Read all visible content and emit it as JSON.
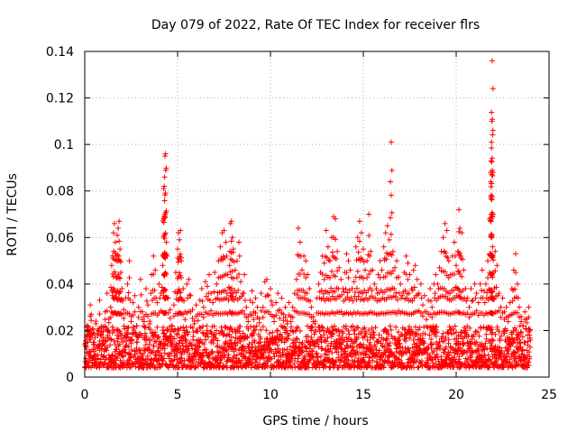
{
  "chart_data": {
    "type": "scatter",
    "title": "Day 079 of 2022, Rate Of TEC Index for receiver flrs",
    "xlabel": "GPS time / hours",
    "ylabel": "ROTI / TECUs",
    "xlim": [
      0,
      25
    ],
    "ylim": [
      0,
      0.14
    ],
    "xticks": [
      0,
      5,
      10,
      15,
      20,
      25
    ],
    "yticks": [
      0,
      0.02,
      0.04,
      0.06,
      0.08,
      0.1,
      0.12,
      0.14
    ],
    "xtick_labels": [
      "0",
      "5",
      "10",
      "15",
      "20",
      "25"
    ],
    "ytick_labels": [
      "0",
      "0.02",
      "0.04",
      "0.06",
      "0.08",
      "0.1",
      "0.12",
      "0.14"
    ],
    "grid": true,
    "marker": "+",
    "color": "#ff0000",
    "series": [
      {
        "name": "ROTI",
        "points": [
          [
            0.05,
            0.008
          ],
          [
            0.1,
            0.012
          ],
          [
            0.15,
            0.022
          ],
          [
            0.2,
            0.018
          ],
          [
            0.3,
            0.031
          ],
          [
            0.35,
            0.027
          ],
          [
            0.45,
            0.019
          ],
          [
            0.5,
            0.015
          ],
          [
            0.6,
            0.024
          ],
          [
            0.7,
            0.013
          ],
          [
            0.8,
            0.033
          ],
          [
            0.9,
            0.021
          ],
          [
            1.0,
            0.017
          ],
          [
            1.1,
            0.028
          ],
          [
            1.2,
            0.036
          ],
          [
            1.3,
            0.025
          ],
          [
            1.4,
            0.03
          ],
          [
            1.45,
            0.048
          ],
          [
            1.5,
            0.052
          ],
          [
            1.55,
            0.062
          ],
          [
            1.6,
            0.066
          ],
          [
            1.65,
            0.058
          ],
          [
            1.7,
            0.05
          ],
          [
            1.75,
            0.061
          ],
          [
            1.8,
            0.064
          ],
          [
            1.85,
            0.067
          ],
          [
            1.9,
            0.055
          ],
          [
            1.95,
            0.045
          ],
          [
            2.0,
            0.038
          ],
          [
            2.1,
            0.029
          ],
          [
            2.2,
            0.034
          ],
          [
            2.3,
            0.04
          ],
          [
            2.4,
            0.05
          ],
          [
            2.5,
            0.026
          ],
          [
            2.6,
            0.032
          ],
          [
            2.7,
            0.035
          ],
          [
            2.8,
            0.022
          ],
          [
            2.9,
            0.03
          ],
          [
            3.0,
            0.042
          ],
          [
            3.1,
            0.028
          ],
          [
            3.2,
            0.026
          ],
          [
            3.3,
            0.038
          ],
          [
            3.4,
            0.031
          ],
          [
            3.5,
            0.024
          ],
          [
            3.6,
            0.044
          ],
          [
            3.7,
            0.052
          ],
          [
            3.8,
            0.046
          ],
          [
            3.9,
            0.032
          ],
          [
            4.0,
            0.04
          ],
          [
            4.1,
            0.036
          ],
          [
            4.2,
            0.048
          ],
          [
            4.25,
            0.081
          ],
          [
            4.28,
            0.082
          ],
          [
            4.3,
            0.086
          ],
          [
            4.32,
            0.095
          ],
          [
            4.35,
            0.096
          ],
          [
            4.4,
            0.058
          ],
          [
            4.5,
            0.034
          ],
          [
            4.6,
            0.029
          ],
          [
            4.7,
            0.022
          ],
          [
            4.8,
            0.031
          ],
          [
            4.9,
            0.045
          ],
          [
            5.0,
            0.055
          ],
          [
            5.05,
            0.062
          ],
          [
            5.1,
            0.059
          ],
          [
            5.15,
            0.063
          ],
          [
            5.2,
            0.05
          ],
          [
            5.3,
            0.038
          ],
          [
            5.4,
            0.028
          ],
          [
            5.5,
            0.04
          ],
          [
            5.6,
            0.042
          ],
          [
            5.7,
            0.035
          ],
          [
            5.8,
            0.029
          ],
          [
            5.9,
            0.024
          ],
          [
            6.0,
            0.031
          ],
          [
            6.1,
            0.027
          ],
          [
            6.2,
            0.033
          ],
          [
            6.3,
            0.038
          ],
          [
            6.4,
            0.03
          ],
          [
            6.5,
            0.041
          ],
          [
            6.6,
            0.039
          ],
          [
            6.7,
            0.044
          ],
          [
            6.8,
            0.036
          ],
          [
            6.9,
            0.032
          ],
          [
            7.0,
            0.045
          ],
          [
            7.1,
            0.04
          ],
          [
            7.2,
            0.05
          ],
          [
            7.3,
            0.056
          ],
          [
            7.4,
            0.062
          ],
          [
            7.5,
            0.063
          ],
          [
            7.6,
            0.058
          ],
          [
            7.7,
            0.044
          ],
          [
            7.8,
            0.048
          ],
          [
            7.85,
            0.066
          ],
          [
            7.9,
            0.067
          ],
          [
            7.95,
            0.06
          ],
          [
            8.0,
            0.055
          ],
          [
            8.1,
            0.046
          ],
          [
            8.2,
            0.05
          ],
          [
            8.3,
            0.058
          ],
          [
            8.4,
            0.041
          ],
          [
            8.5,
            0.036
          ],
          [
            8.6,
            0.044
          ],
          [
            8.7,
            0.03
          ],
          [
            8.8,
            0.026
          ],
          [
            8.9,
            0.033
          ],
          [
            9.0,
            0.037
          ],
          [
            9.1,
            0.028
          ],
          [
            9.2,
            0.034
          ],
          [
            9.3,
            0.03
          ],
          [
            9.4,
            0.025
          ],
          [
            9.5,
            0.036
          ],
          [
            9.6,
            0.03
          ],
          [
            9.7,
            0.041
          ],
          [
            9.8,
            0.042
          ],
          [
            9.9,
            0.035
          ],
          [
            10.0,
            0.038
          ],
          [
            10.1,
            0.031
          ],
          [
            10.2,
            0.026
          ],
          [
            10.3,
            0.032
          ],
          [
            10.4,
            0.036
          ],
          [
            10.5,
            0.029
          ],
          [
            10.6,
            0.034
          ],
          [
            10.7,
            0.027
          ],
          [
            10.8,
            0.03
          ],
          [
            10.9,
            0.024
          ],
          [
            11.0,
            0.032
          ],
          [
            11.1,
            0.026
          ],
          [
            11.2,
            0.03
          ],
          [
            11.3,
            0.036
          ],
          [
            11.4,
            0.042
          ],
          [
            11.5,
            0.064
          ],
          [
            11.6,
            0.058
          ],
          [
            11.7,
            0.046
          ],
          [
            11.8,
            0.052
          ],
          [
            11.9,
            0.05
          ],
          [
            12.0,
            0.044
          ],
          [
            12.1,
            0.038
          ],
          [
            12.2,
            0.03
          ],
          [
            12.3,
            0.026
          ],
          [
            12.4,
            0.024
          ],
          [
            12.5,
            0.034
          ],
          [
            12.6,
            0.04
          ],
          [
            12.7,
            0.045
          ],
          [
            12.8,
            0.052
          ],
          [
            12.9,
            0.049
          ],
          [
            13.0,
            0.063
          ],
          [
            13.1,
            0.056
          ],
          [
            13.2,
            0.05
          ],
          [
            13.3,
            0.06
          ],
          [
            13.4,
            0.069
          ],
          [
            13.5,
            0.068
          ],
          [
            13.6,
            0.054
          ],
          [
            13.7,
            0.047
          ],
          [
            13.8,
            0.042
          ],
          [
            13.9,
            0.038
          ],
          [
            14.0,
            0.045
          ],
          [
            14.1,
            0.053
          ],
          [
            14.2,
            0.05
          ],
          [
            14.3,
            0.046
          ],
          [
            14.4,
            0.038
          ],
          [
            14.5,
            0.041
          ],
          [
            14.6,
            0.056
          ],
          [
            14.7,
            0.06
          ],
          [
            14.8,
            0.067
          ],
          [
            14.9,
            0.062
          ],
          [
            15.0,
            0.055
          ],
          [
            15.1,
            0.046
          ],
          [
            15.2,
            0.05
          ],
          [
            15.3,
            0.07
          ],
          [
            15.4,
            0.054
          ],
          [
            15.5,
            0.046
          ],
          [
            15.6,
            0.04
          ],
          [
            15.7,
            0.038
          ],
          [
            15.8,
            0.044
          ],
          [
            15.9,
            0.05
          ],
          [
            16.0,
            0.046
          ],
          [
            16.1,
            0.056
          ],
          [
            16.2,
            0.062
          ],
          [
            16.3,
            0.065
          ],
          [
            16.4,
            0.059
          ],
          [
            16.5,
            0.101
          ],
          [
            16.6,
            0.054
          ],
          [
            16.7,
            0.047
          ],
          [
            16.8,
            0.05
          ],
          [
            16.9,
            0.043
          ],
          [
            17.0,
            0.04
          ],
          [
            17.1,
            0.035
          ],
          [
            17.2,
            0.045
          ],
          [
            17.3,
            0.052
          ],
          [
            17.4,
            0.049
          ],
          [
            17.5,
            0.044
          ],
          [
            17.6,
            0.038
          ],
          [
            17.7,
            0.046
          ],
          [
            17.8,
            0.048
          ],
          [
            17.9,
            0.042
          ],
          [
            18.0,
            0.036
          ],
          [
            18.1,
            0.04
          ],
          [
            18.2,
            0.031
          ],
          [
            18.3,
            0.035
          ],
          [
            18.4,
            0.028
          ],
          [
            18.5,
            0.033
          ],
          [
            18.6,
            0.038
          ],
          [
            18.7,
            0.03
          ],
          [
            18.8,
            0.04
          ],
          [
            18.9,
            0.044
          ],
          [
            19.0,
            0.04
          ],
          [
            19.1,
            0.047
          ],
          [
            19.2,
            0.054
          ],
          [
            19.3,
            0.06
          ],
          [
            19.4,
            0.066
          ],
          [
            19.5,
            0.063
          ],
          [
            19.6,
            0.05
          ],
          [
            19.7,
            0.044
          ],
          [
            19.8,
            0.052
          ],
          [
            19.9,
            0.058
          ],
          [
            20.0,
            0.048
          ],
          [
            20.1,
            0.054
          ],
          [
            20.15,
            0.072
          ],
          [
            20.2,
            0.064
          ],
          [
            20.3,
            0.062
          ],
          [
            20.4,
            0.046
          ],
          [
            20.5,
            0.038
          ],
          [
            20.6,
            0.034
          ],
          [
            20.7,
            0.03
          ],
          [
            20.8,
            0.038
          ],
          [
            20.9,
            0.033
          ],
          [
            21.0,
            0.04
          ],
          [
            21.1,
            0.036
          ],
          [
            21.2,
            0.032
          ],
          [
            21.3,
            0.04
          ],
          [
            21.4,
            0.046
          ],
          [
            21.5,
            0.037
          ],
          [
            21.6,
            0.04
          ],
          [
            21.7,
            0.05
          ],
          [
            21.8,
            0.053
          ],
          [
            21.85,
            0.088
          ],
          [
            21.88,
            0.093
          ],
          [
            21.9,
            0.101
          ],
          [
            21.92,
            0.11
          ],
          [
            21.94,
            0.136
          ],
          [
            21.96,
            0.056
          ],
          [
            22.0,
            0.045
          ],
          [
            22.1,
            0.054
          ],
          [
            22.2,
            0.048
          ],
          [
            22.3,
            0.036
          ],
          [
            22.4,
            0.03
          ],
          [
            22.5,
            0.034
          ],
          [
            22.6,
            0.028
          ],
          [
            22.7,
            0.03
          ],
          [
            22.8,
            0.026
          ],
          [
            22.9,
            0.032
          ],
          [
            23.0,
            0.038
          ],
          [
            23.1,
            0.046
          ],
          [
            23.2,
            0.053
          ],
          [
            23.3,
            0.04
          ],
          [
            23.4,
            0.03
          ],
          [
            23.5,
            0.026
          ],
          [
            23.6,
            0.022
          ],
          [
            23.7,
            0.028
          ],
          [
            23.8,
            0.025
          ],
          [
            23.9,
            0.03
          ],
          [
            23.95,
            0.018
          ]
        ],
        "baseline_band": {
          "x_range": [
            0,
            24
          ],
          "min": 0.004,
          "typical_low": 0.008,
          "typical_high": 0.022
        }
      }
    ]
  }
}
